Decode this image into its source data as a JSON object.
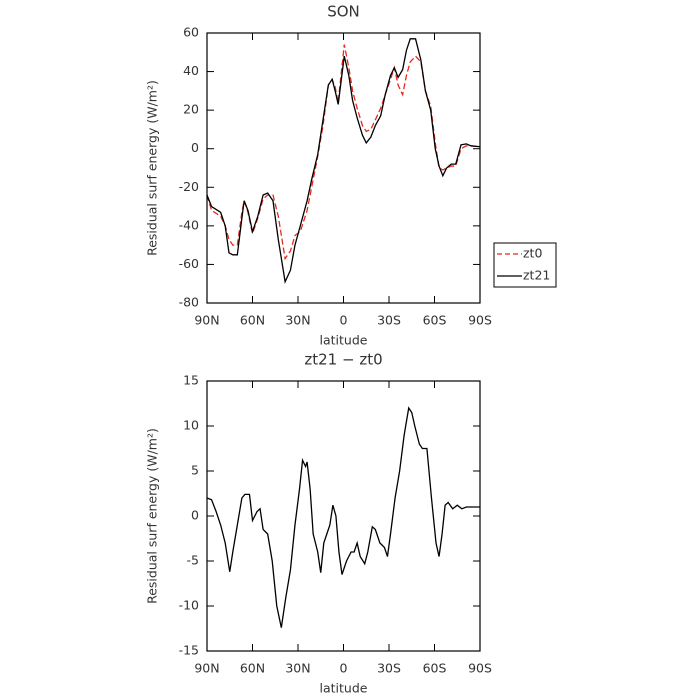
{
  "chart_data": [
    {
      "type": "line",
      "title": "SON",
      "xlabel": "latitude",
      "ylabel": "Residual surf energy (W/m²)",
      "x": [
        90,
        87,
        81,
        78,
        75.5,
        73,
        70,
        67,
        65.5,
        63,
        60,
        56.5,
        53,
        50,
        46.5,
        43,
        38.5,
        35,
        32,
        28.5,
        24,
        21,
        17,
        13.5,
        10,
        7.5,
        5.5,
        3.5,
        -0.5,
        -3.5,
        -6,
        -9,
        -12.5,
        -15,
        -18,
        -21,
        -24.5,
        -27.5,
        -31,
        -33.5,
        -36,
        -39,
        -41.5,
        -44,
        -47.5,
        -51,
        -54,
        -57.5,
        -60.5,
        -63,
        -65.5,
        -68,
        -71,
        -74,
        -77.5,
        -81,
        -84,
        -90
      ],
      "series": [
        {
          "name": "zt0",
          "color": "#e8281e",
          "linestyle": "dashed",
          "values": [
            -24,
            -32,
            -35,
            -40,
            -47,
            -50,
            -50,
            -33,
            -27,
            -33,
            -44,
            -36,
            -26,
            -24,
            -24,
            -35,
            -57,
            -53,
            -45,
            -43,
            -32,
            -20,
            -4,
            12,
            33,
            36,
            32,
            24,
            54,
            42,
            30,
            21,
            12,
            9,
            10,
            15,
            21,
            28,
            36,
            42,
            33,
            28,
            38,
            45,
            48,
            45,
            30,
            22,
            3,
            -10,
            -11,
            -10,
            -9,
            -9,
            0,
            1.5,
            1.5,
            1
          ]
        },
        {
          "name": "zt21",
          "color": "#000000",
          "linestyle": "solid",
          "values": [
            -24,
            -30,
            -33,
            -40,
            -54,
            -55,
            -55,
            -36,
            -27,
            -32,
            -43,
            -35,
            -24,
            -23,
            -27,
            -47,
            -69,
            -63,
            -50,
            -40,
            -27,
            -16,
            -3,
            15,
            33,
            36,
            30,
            23,
            48,
            38,
            25,
            16,
            7,
            3,
            6,
            12,
            17,
            28,
            38,
            42,
            37,
            41,
            51,
            57,
            57,
            46,
            30,
            20,
            0,
            -9,
            -14,
            -10,
            -8,
            -8,
            2,
            2.5,
            1.5,
            1
          ]
        }
      ],
      "xlim": [
        90,
        -90
      ],
      "xticks": [
        {
          "value": 90,
          "label": "90N"
        },
        {
          "value": 60,
          "label": "60N"
        },
        {
          "value": 30,
          "label": "30N"
        },
        0,
        {
          "value": -30,
          "label": "30S"
        },
        {
          "value": -60,
          "label": "60S"
        },
        {
          "value": -90,
          "label": "90S"
        }
      ],
      "ylim": [
        -80,
        60
      ],
      "yticks": [
        -80,
        -60,
        -40,
        -20,
        0,
        20,
        40,
        60
      ],
      "legend": "right"
    },
    {
      "type": "line",
      "title": "zt21 − zt0",
      "xlabel": "latitude",
      "ylabel": "Residual surf energy (W/m²)",
      "x": [
        90,
        87,
        84,
        81,
        78,
        75,
        73,
        70,
        67,
        65,
        62,
        60,
        57,
        55,
        53,
        50,
        47,
        44,
        41,
        38,
        35,
        32,
        29,
        27,
        25,
        24,
        22,
        20,
        17,
        15,
        13,
        11,
        9,
        7,
        5,
        3,
        1,
        -2,
        -5,
        -7,
        -9,
        -11,
        -14,
        -16,
        -19,
        -21,
        -24,
        -27,
        -29,
        -31,
        -34,
        -37,
        -40,
        -43,
        -45,
        -47,
        -50,
        -52,
        -55,
        -58,
        -61,
        -63,
        -65,
        -67,
        -69,
        -72,
        -75,
        -78,
        -81,
        -85,
        -90
      ],
      "series": [
        {
          "color": "#000000",
          "linestyle": "solid",
          "values": [
            2,
            1.8,
            0.5,
            -1,
            -3,
            -6.2,
            -4,
            -1,
            2,
            2.4,
            2.4,
            -0.5,
            0.5,
            0.8,
            -1.5,
            -2,
            -5,
            -10,
            -12.4,
            -9,
            -6,
            -1,
            3,
            6.2,
            5.5,
            6,
            3,
            -2,
            -4,
            -6.3,
            -3,
            -2,
            -1,
            1.2,
            0,
            -4,
            -6.5,
            -5,
            -4,
            -4,
            -3,
            -4.5,
            -5.3,
            -4,
            -1.2,
            -1.5,
            -3,
            -3.5,
            -4.5,
            -2,
            2,
            5,
            9,
            12,
            11.5,
            10,
            8,
            7.5,
            7.5,
            2,
            -3,
            -4.5,
            -2,
            1.2,
            1.5,
            0.8,
            1.2,
            0.8,
            1,
            1,
            1
          ]
        }
      ],
      "xlim": [
        90,
        -90
      ],
      "xticks": [
        {
          "value": 90,
          "label": "90N"
        },
        {
          "value": 60,
          "label": "60N"
        },
        {
          "value": 30,
          "label": "30N"
        },
        0,
        {
          "value": -30,
          "label": "30S"
        },
        {
          "value": -60,
          "label": "60S"
        },
        {
          "value": -90,
          "label": "90S"
        }
      ],
      "ylim": [
        -15,
        15
      ],
      "yticks": [
        -15,
        -10,
        -5,
        0,
        5,
        10,
        15
      ]
    }
  ]
}
